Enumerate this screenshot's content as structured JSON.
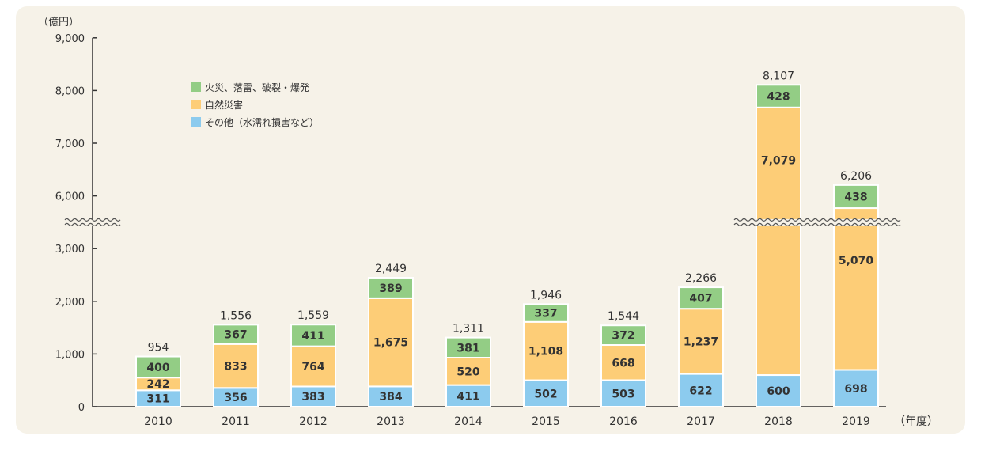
{
  "chart_data": {
    "type": "bar",
    "stacked": true,
    "y_unit_label": "（億円）",
    "x_unit_label": "（年度）",
    "categories": [
      "2010",
      "2011",
      "2012",
      "2013",
      "2014",
      "2015",
      "2016",
      "2017",
      "2018",
      "2019"
    ],
    "series": [
      {
        "name": "その他（水濡れ損害など）",
        "color": "#8ccbee",
        "values": [
          311,
          356,
          383,
          384,
          411,
          502,
          503,
          622,
          600,
          698
        ]
      },
      {
        "name": "自然災害",
        "color": "#fdcd77",
        "values": [
          242,
          833,
          764,
          1675,
          520,
          1108,
          668,
          1237,
          7079,
          5070
        ]
      },
      {
        "name": "火災、落雷、破裂・爆発",
        "color": "#93cd85",
        "values": [
          400,
          367,
          411,
          389,
          381,
          337,
          372,
          407,
          428,
          438
        ]
      }
    ],
    "totals": [
      "954",
      "1,556",
      "1,559",
      "2,449",
      "1,311",
      "1,946",
      "1,544",
      "2,266",
      "8,107",
      "6,206"
    ],
    "value_labels": [
      [
        "311",
        "356",
        "383",
        "384",
        "411",
        "502",
        "503",
        "622",
        "600",
        "698"
      ],
      [
        "242",
        "833",
        "764",
        "1,675",
        "520",
        "1,108",
        "668",
        "1,237",
        "7,079",
        "5,070"
      ],
      [
        "400",
        "367",
        "411",
        "389",
        "381",
        "337",
        "372",
        "407",
        "428",
        "438"
      ]
    ],
    "y_ticks_lower": [
      "0",
      "1,000",
      "2,000",
      "3,000"
    ],
    "y_ticks_upper": [
      "6,000",
      "7,000",
      "8,000",
      "9,000"
    ],
    "axis_break": {
      "from": 3500,
      "to": 5500
    },
    "ylim": [
      0,
      9000
    ],
    "legend_position": "top-left",
    "legend_order": [
      2,
      1,
      0
    ]
  }
}
